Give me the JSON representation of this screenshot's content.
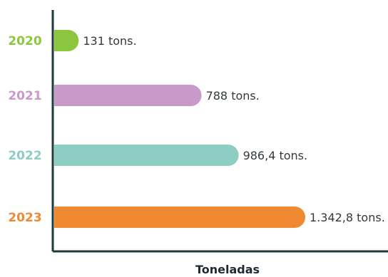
{
  "chart_data": {
    "type": "bar",
    "orientation": "horizontal",
    "categories": [
      "2020",
      "2021",
      "2022",
      "2023"
    ],
    "values": [
      131,
      788,
      986.4,
      1342.8
    ],
    "value_labels": [
      "131 tons.",
      "788 tons.",
      "986,4 tons.",
      "1.342,8 tons."
    ],
    "xlabel": "Toneladas",
    "ylabel": "",
    "xlim": [
      0,
      1342.8
    ],
    "grid": false,
    "bar_colors": [
      "#8cc63f",
      "#c79ac9",
      "#8ecdc3",
      "#f08a32"
    ],
    "category_label_colors": [
      "#8cc63f",
      "#c79ac9",
      "#8ecdc3",
      "#f08a32"
    ],
    "axis_color": "#1f3a3a"
  }
}
